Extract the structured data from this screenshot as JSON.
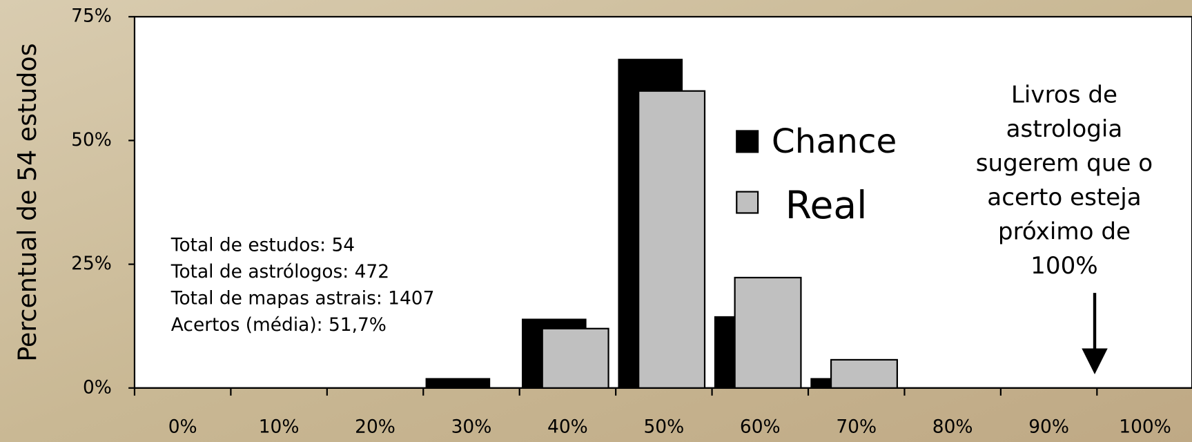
{
  "chart_data": {
    "type": "bar",
    "y_label": "Percentual de 54 estudos",
    "categories": [
      "0%",
      "10%",
      "20%",
      "30%",
      "40%",
      "50%",
      "60%",
      "70%",
      "80%",
      "90%",
      "100%"
    ],
    "series": [
      {
        "name": "Chance",
        "color": "#000000",
        "values": [
          0,
          0,
          0,
          2,
          14,
          66.5,
          14.5,
          2,
          0,
          0,
          0
        ]
      },
      {
        "name": "Real",
        "color": "#c0c0c0",
        "values": [
          0,
          0,
          0,
          0,
          12,
          60,
          22.3,
          5.7,
          0,
          0,
          0
        ]
      }
    ],
    "ylim": [
      0,
      75
    ],
    "yticks": [
      {
        "value": 0,
        "label": "0%"
      },
      {
        "value": 25,
        "label": "25%"
      },
      {
        "value": 50,
        "label": "50%"
      },
      {
        "value": 75,
        "label": "75%"
      }
    ],
    "stats": [
      "Total de estudos: 54",
      "Total de astrólogos: 472",
      "Total de mapas astrais: 1407",
      "Acertos (média): 51,7%"
    ],
    "note": [
      "Livros de",
      "astrologia",
      "sugerem que o",
      "acerto esteja",
      "próximo de",
      "100%"
    ]
  }
}
